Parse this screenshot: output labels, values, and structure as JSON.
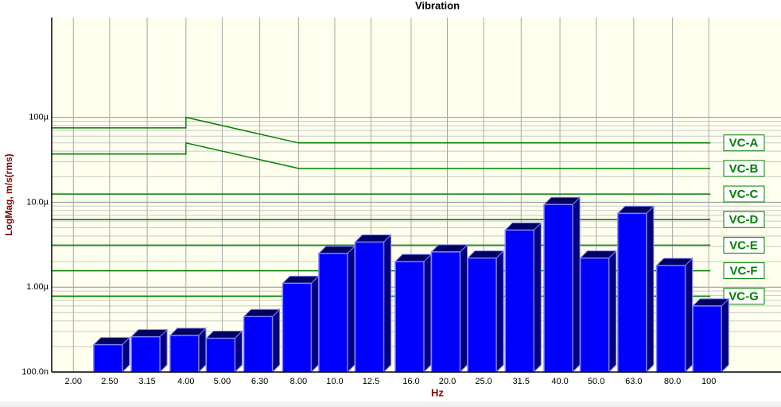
{
  "chart_data": {
    "type": "bar",
    "title": "Vibration",
    "x_label": "Hz",
    "y_label": "LogMag, m/s(rms)",
    "x_scale": "log",
    "y_scale": "log",
    "grid": true,
    "xlim": [
      1.75,
      156
    ],
    "ylim": [
      1e-07,
      0.0015
    ],
    "xticks": [
      {
        "value": 2,
        "label": "2.00"
      },
      {
        "value": 2.5,
        "label": "2.50"
      },
      {
        "value": 3.15,
        "label": "3.15"
      },
      {
        "value": 4,
        "label": "4.00"
      },
      {
        "value": 5,
        "label": "5.00"
      },
      {
        "value": 6.3,
        "label": "6.30"
      },
      {
        "value": 8,
        "label": "8.00"
      },
      {
        "value": 10,
        "label": "10.0"
      },
      {
        "value": 12.5,
        "label": "12.5"
      },
      {
        "value": 16,
        "label": "16.0"
      },
      {
        "value": 20,
        "label": "20.0"
      },
      {
        "value": 25,
        "label": "25.0"
      },
      {
        "value": 31.5,
        "label": "31.5"
      },
      {
        "value": 40,
        "label": "40.0"
      },
      {
        "value": 50,
        "label": "50.0"
      },
      {
        "value": 63,
        "label": "63.0"
      },
      {
        "value": 80,
        "label": "80.0"
      },
      100
    ],
    "yticks": [
      {
        "value": 1e-07,
        "label": "100.0n"
      },
      {
        "value": 1e-06,
        "label": "1.00µ"
      },
      {
        "value": 1e-05,
        "label": "10.0µ"
      },
      {
        "value": 0.0001,
        "label": "100µ"
      }
    ],
    "yminorticks": [
      2e-07,
      3e-07,
      4e-07,
      5e-07,
      6e-07,
      7e-07,
      8e-07,
      9e-07,
      2e-06,
      3e-06,
      4e-06,
      5e-06,
      6e-06,
      7e-06,
      8e-06,
      9e-06,
      2e-05,
      3e-05,
      4e-05,
      5e-05,
      6e-05,
      7e-05,
      8e-05,
      9e-05
    ],
    "color": "#0000ff",
    "x": [
      2.5,
      3.15,
      4,
      5,
      6.3,
      8,
      10,
      12.5,
      16,
      20,
      25,
      31.5,
      40,
      50,
      63,
      80,
      100
    ],
    "values": [
      2.1e-07,
      2.6e-07,
      2.7e-07,
      2.5e-07,
      4.5e-07,
      1.11e-06,
      2.5e-06,
      3.4e-06,
      2e-06,
      2.6e-06,
      2.2e-06,
      4.7e-06,
      9.4e-06,
      2.2e-06,
      7.4e-06,
      1.8e-06,
      6e-07
    ],
    "lines": [
      {
        "name": "VC-A",
        "color": "#008000",
        "x": [
          1.75,
          4,
          4,
          8,
          101
        ],
        "values": [
          7.5e-05,
          7.5e-05,
          0.0001,
          5e-05,
          5e-05
        ]
      },
      {
        "name": "VC-B",
        "color": "#008000",
        "x": [
          1.75,
          4,
          4,
          8,
          101
        ],
        "values": [
          3.7e-05,
          3.7e-05,
          5e-05,
          2.5e-05,
          2.5e-05
        ]
      },
      {
        "name": "VC-C",
        "color": "#008000",
        "x": [
          1.75,
          101
        ],
        "values": [
          1.25e-05,
          1.25e-05
        ]
      },
      {
        "name": "VC-D",
        "color": "#008000",
        "x": [
          1.75,
          101
        ],
        "values": [
          6.25e-06,
          6.25e-06
        ]
      },
      {
        "name": "VC-E",
        "color": "#008000",
        "x": [
          1.75,
          101
        ],
        "values": [
          3.12e-06,
          3.12e-06
        ]
      },
      {
        "name": "VC-F",
        "color": "#008000",
        "x": [
          1.75,
          101
        ],
        "values": [
          1.56e-06,
          1.56e-06
        ]
      },
      {
        "name": "VC-G",
        "color": "#008000",
        "x": [
          1.75,
          101
        ],
        "values": [
          7.8e-07,
          7.8e-07
        ]
      }
    ]
  }
}
